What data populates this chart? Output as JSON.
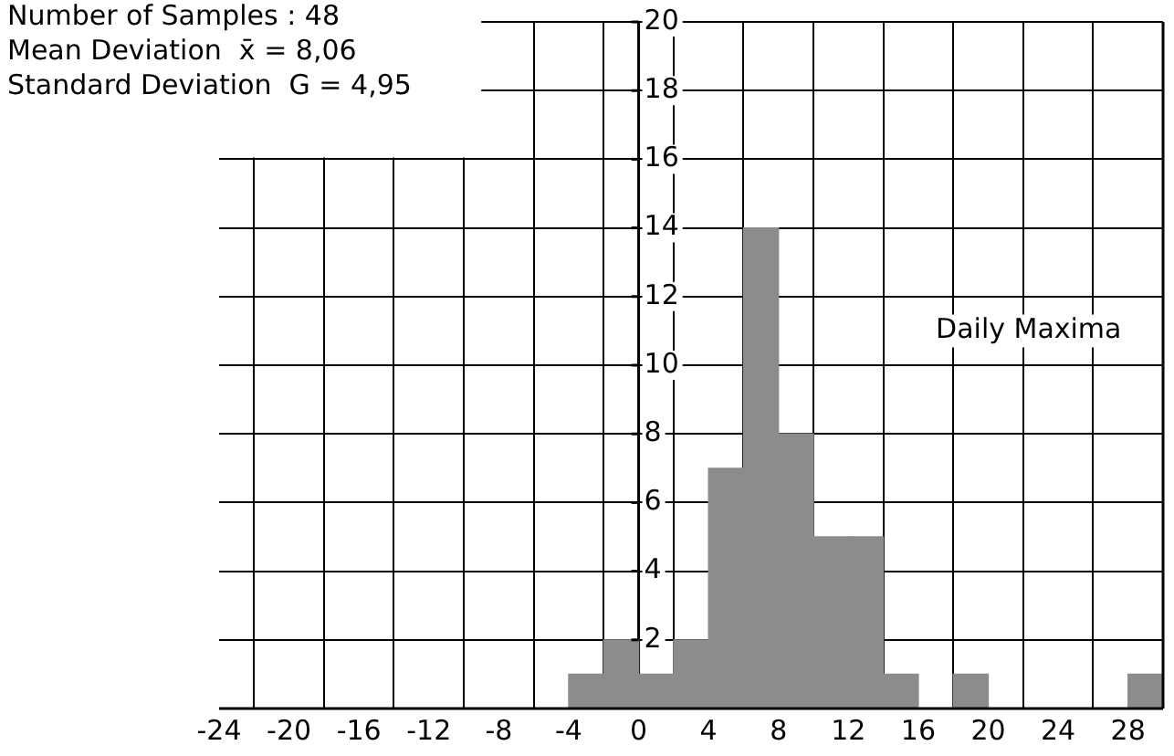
{
  "chart_data": {
    "type": "histogram",
    "bins": [
      -4,
      -2,
      0,
      2,
      4,
      6,
      8,
      10,
      12,
      14,
      16,
      18,
      20,
      22,
      24,
      26,
      28,
      30
    ],
    "series": [
      {
        "name": "Daily Maxima",
        "color": "#8c8c8c",
        "values": [
          1,
          2,
          1,
          2,
          7,
          14,
          8,
          5,
          5,
          1,
          0,
          1,
          0,
          0,
          0,
          0,
          1
        ]
      }
    ],
    "xlim": [
      -24,
      30
    ],
    "xticks": [
      -24,
      -20,
      -16,
      -12,
      -8,
      -4,
      0,
      4,
      8,
      12,
      16,
      20,
      24,
      28
    ],
    "ylim": [
      0,
      20
    ],
    "yticks": [
      2,
      4,
      6,
      8,
      10,
      12,
      14,
      16,
      18,
      20
    ],
    "grid": true,
    "legend": false,
    "annotations": [
      "Number of Samples : 48",
      "Mean Deviation  x̄ = 8,06",
      "Standard Deviation  G = 4,95"
    ]
  }
}
